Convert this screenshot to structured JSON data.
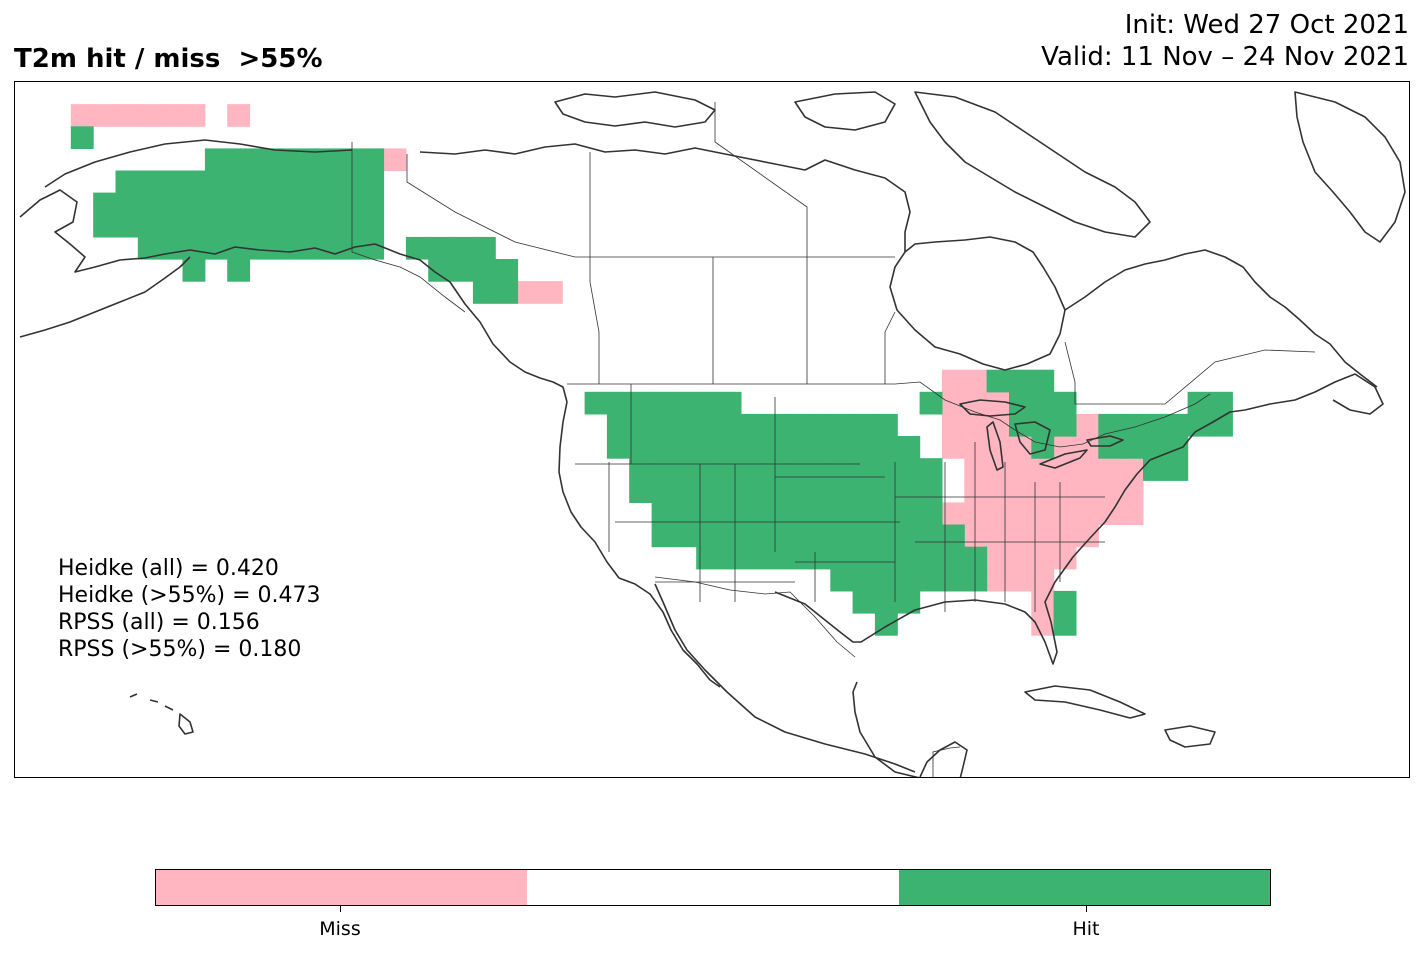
{
  "header": {
    "title": "T2m hit / miss  >55%",
    "init": "Init: Wed 27 Oct 2021",
    "valid": "Valid: 11 Nov – 24 Nov 2021"
  },
  "stats": [
    "Heidke (all) = 0.420",
    "Heidke (>55%) = 0.473",
    "RPSS (all) = 0.156",
    "RPSS (>55%) = 0.180"
  ],
  "colorbar": {
    "categories": [
      "Miss",
      "",
      "Hit"
    ],
    "colors": [
      "#ffb6c1",
      "#ffffff",
      "#3cb371"
    ],
    "labels": {
      "miss": "Miss",
      "hit": "Hit"
    }
  },
  "map": {
    "projection": "Plate Carree",
    "region": "North America",
    "coastline_color": "#333333",
    "hit_color": "#3cb371",
    "miss_color": "#ffb6c1",
    "extent": {
      "lon": [
        -175,
        -50
      ],
      "lat": [
        12,
        75
      ]
    }
  },
  "chart_data": {
    "type": "heatmap",
    "title": "T2m hit / miss  >55%",
    "legend": [
      "Miss",
      "Hit"
    ],
    "grid_cell_deg": 2,
    "hit_cells_lonlat": [
      [
        -169,
        70
      ],
      [
        -157,
        68
      ],
      [
        -155,
        68
      ],
      [
        -153,
        68
      ],
      [
        -151,
        68
      ],
      [
        -149,
        68
      ],
      [
        -147,
        68
      ],
      [
        -145,
        68
      ],
      [
        -143,
        68
      ],
      [
        -165,
        66
      ],
      [
        -163,
        66
      ],
      [
        -161,
        66
      ],
      [
        -159,
        66
      ],
      [
        -157,
        66
      ],
      [
        -155,
        66
      ],
      [
        -153,
        66
      ],
      [
        -151,
        66
      ],
      [
        -149,
        66
      ],
      [
        -147,
        66
      ],
      [
        -145,
        66
      ],
      [
        -143,
        66
      ],
      [
        -167,
        64
      ],
      [
        -165,
        64
      ],
      [
        -163,
        64
      ],
      [
        -161,
        64
      ],
      [
        -159,
        64
      ],
      [
        -157,
        64
      ],
      [
        -155,
        64
      ],
      [
        -153,
        64
      ],
      [
        -151,
        64
      ],
      [
        -149,
        64
      ],
      [
        -147,
        64
      ],
      [
        -145,
        64
      ],
      [
        -143,
        64
      ],
      [
        -167,
        62
      ],
      [
        -165,
        62
      ],
      [
        -163,
        62
      ],
      [
        -161,
        62
      ],
      [
        -159,
        62
      ],
      [
        -157,
        62
      ],
      [
        -155,
        62
      ],
      [
        -153,
        62
      ],
      [
        -151,
        62
      ],
      [
        -149,
        62
      ],
      [
        -147,
        62
      ],
      [
        -145,
        62
      ],
      [
        -143,
        62
      ],
      [
        -163,
        60
      ],
      [
        -161,
        60
      ],
      [
        -159,
        60
      ],
      [
        -157,
        60
      ],
      [
        -155,
        60
      ],
      [
        -153,
        60
      ],
      [
        -151,
        60
      ],
      [
        -149,
        60
      ],
      [
        -147,
        60
      ],
      [
        -145,
        60
      ],
      [
        -143,
        60
      ],
      [
        -159,
        58
      ],
      [
        -155,
        58
      ],
      [
        -139,
        60
      ],
      [
        -137,
        60
      ],
      [
        -135,
        60
      ],
      [
        -133,
        60
      ],
      [
        -137,
        58
      ],
      [
        -135,
        58
      ],
      [
        -133,
        58
      ],
      [
        -131,
        58
      ],
      [
        -133,
        56
      ],
      [
        -131,
        56
      ],
      [
        -123,
        46
      ],
      [
        -121,
        46
      ],
      [
        -119,
        46
      ],
      [
        -117,
        46
      ],
      [
        -115,
        46
      ],
      [
        -113,
        46
      ],
      [
        -111,
        46
      ],
      [
        -121,
        44
      ],
      [
        -119,
        44
      ],
      [
        -117,
        44
      ],
      [
        -115,
        44
      ],
      [
        -113,
        44
      ],
      [
        -111,
        44
      ],
      [
        -109,
        44
      ],
      [
        -107,
        44
      ],
      [
        -105,
        44
      ],
      [
        -103,
        44
      ],
      [
        -101,
        44
      ],
      [
        -99,
        44
      ],
      [
        -97,
        44
      ],
      [
        -121,
        42
      ],
      [
        -119,
        42
      ],
      [
        -117,
        42
      ],
      [
        -115,
        42
      ],
      [
        -113,
        42
      ],
      [
        -111,
        42
      ],
      [
        -109,
        42
      ],
      [
        -107,
        42
      ],
      [
        -105,
        42
      ],
      [
        -103,
        42
      ],
      [
        -101,
        42
      ],
      [
        -99,
        42
      ],
      [
        -97,
        42
      ],
      [
        -95,
        42
      ],
      [
        -119,
        40
      ],
      [
        -117,
        40
      ],
      [
        -115,
        40
      ],
      [
        -113,
        40
      ],
      [
        -111,
        40
      ],
      [
        -109,
        40
      ],
      [
        -107,
        40
      ],
      [
        -105,
        40
      ],
      [
        -103,
        40
      ],
      [
        -101,
        40
      ],
      [
        -99,
        40
      ],
      [
        -97,
        40
      ],
      [
        -95,
        40
      ],
      [
        -93,
        40
      ],
      [
        -119,
        38
      ],
      [
        -117,
        38
      ],
      [
        -115,
        38
      ],
      [
        -113,
        38
      ],
      [
        -111,
        38
      ],
      [
        -109,
        38
      ],
      [
        -107,
        38
      ],
      [
        -105,
        38
      ],
      [
        -103,
        38
      ],
      [
        -101,
        38
      ],
      [
        -99,
        38
      ],
      [
        -97,
        38
      ],
      [
        -95,
        38
      ],
      [
        -93,
        38
      ],
      [
        -117,
        36
      ],
      [
        -115,
        36
      ],
      [
        -113,
        36
      ],
      [
        -111,
        36
      ],
      [
        -109,
        36
      ],
      [
        -107,
        36
      ],
      [
        -105,
        36
      ],
      [
        -103,
        36
      ],
      [
        -101,
        36
      ],
      [
        -99,
        36
      ],
      [
        -97,
        36
      ],
      [
        -95,
        36
      ],
      [
        -93,
        36
      ],
      [
        -117,
        34
      ],
      [
        -115,
        34
      ],
      [
        -113,
        34
      ],
      [
        -111,
        34
      ],
      [
        -109,
        34
      ],
      [
        -107,
        34
      ],
      [
        -105,
        34
      ],
      [
        -103,
        34
      ],
      [
        -101,
        34
      ],
      [
        -99,
        34
      ],
      [
        -97,
        34
      ],
      [
        -95,
        34
      ],
      [
        -93,
        34
      ],
      [
        -91,
        34
      ],
      [
        -113,
        32
      ],
      [
        -111,
        32
      ],
      [
        -109,
        32
      ],
      [
        -107,
        32
      ],
      [
        -105,
        32
      ],
      [
        -103,
        32
      ],
      [
        -101,
        32
      ],
      [
        -99,
        32
      ],
      [
        -97,
        32
      ],
      [
        -95,
        32
      ],
      [
        -93,
        32
      ],
      [
        -91,
        32
      ],
      [
        -89,
        32
      ],
      [
        -101,
        30
      ],
      [
        -99,
        30
      ],
      [
        -97,
        30
      ],
      [
        -95,
        30
      ],
      [
        -93,
        30
      ],
      [
        -91,
        30
      ],
      [
        -89,
        30
      ],
      [
        -99,
        28
      ],
      [
        -97,
        28
      ],
      [
        -95,
        28
      ],
      [
        -97,
        26
      ],
      [
        -81,
        28
      ],
      [
        -81,
        26
      ],
      [
        -93,
        46
      ],
      [
        -87,
        48
      ],
      [
        -85,
        48
      ],
      [
        -83,
        48
      ],
      [
        -85,
        46
      ],
      [
        -83,
        46
      ],
      [
        -81,
        46
      ],
      [
        -85,
        44
      ],
      [
        -83,
        44
      ],
      [
        -81,
        44
      ],
      [
        -83,
        42
      ],
      [
        -77,
        44
      ],
      [
        -75,
        44
      ],
      [
        -73,
        44
      ],
      [
        -71,
        44
      ],
      [
        -69,
        44
      ],
      [
        -67,
        44
      ],
      [
        -69,
        46
      ],
      [
        -67,
        46
      ],
      [
        -77,
        42
      ],
      [
        -75,
        42
      ],
      [
        -73,
        42
      ],
      [
        -71,
        42
      ],
      [
        -73,
        40
      ],
      [
        -71,
        40
      ]
    ],
    "miss_cells_lonlat": [
      [
        -169,
        72
      ],
      [
        -167,
        72
      ],
      [
        -165,
        72
      ],
      [
        -163,
        72
      ],
      [
        -161,
        72
      ],
      [
        -159,
        72
      ],
      [
        -155,
        72
      ],
      [
        -141,
        68
      ],
      [
        -129,
        56
      ],
      [
        -127,
        56
      ],
      [
        -91,
        48
      ],
      [
        -89,
        48
      ],
      [
        -91,
        46
      ],
      [
        -89,
        46
      ],
      [
        -87,
        46
      ],
      [
        -91,
        44
      ],
      [
        -89,
        44
      ],
      [
        -87,
        44
      ],
      [
        -79,
        44
      ],
      [
        -91,
        42
      ],
      [
        -89,
        42
      ],
      [
        -87,
        42
      ],
      [
        -85,
        42
      ],
      [
        -81,
        42
      ],
      [
        -79,
        42
      ],
      [
        -89,
        40
      ],
      [
        -87,
        40
      ],
      [
        -85,
        40
      ],
      [
        -83,
        40
      ],
      [
        -81,
        40
      ],
      [
        -79,
        40
      ],
      [
        -77,
        40
      ],
      [
        -75,
        40
      ],
      [
        -89,
        38
      ],
      [
        -87,
        38
      ],
      [
        -85,
        38
      ],
      [
        -83,
        38
      ],
      [
        -81,
        38
      ],
      [
        -79,
        38
      ],
      [
        -77,
        38
      ],
      [
        -75,
        38
      ],
      [
        -91,
        36
      ],
      [
        -89,
        36
      ],
      [
        -87,
        36
      ],
      [
        -85,
        36
      ],
      [
        -83,
        36
      ],
      [
        -81,
        36
      ],
      [
        -79,
        36
      ],
      [
        -77,
        36
      ],
      [
        -75,
        36
      ],
      [
        -89,
        34
      ],
      [
        -87,
        34
      ],
      [
        -85,
        34
      ],
      [
        -83,
        34
      ],
      [
        -81,
        34
      ],
      [
        -79,
        34
      ],
      [
        -87,
        32
      ],
      [
        -85,
        32
      ],
      [
        -83,
        32
      ],
      [
        -81,
        32
      ],
      [
        -89,
        30
      ],
      [
        -87,
        30
      ],
      [
        -85,
        30
      ],
      [
        -83,
        30
      ],
      [
        -83,
        28
      ],
      [
        -83,
        26
      ]
    ]
  }
}
